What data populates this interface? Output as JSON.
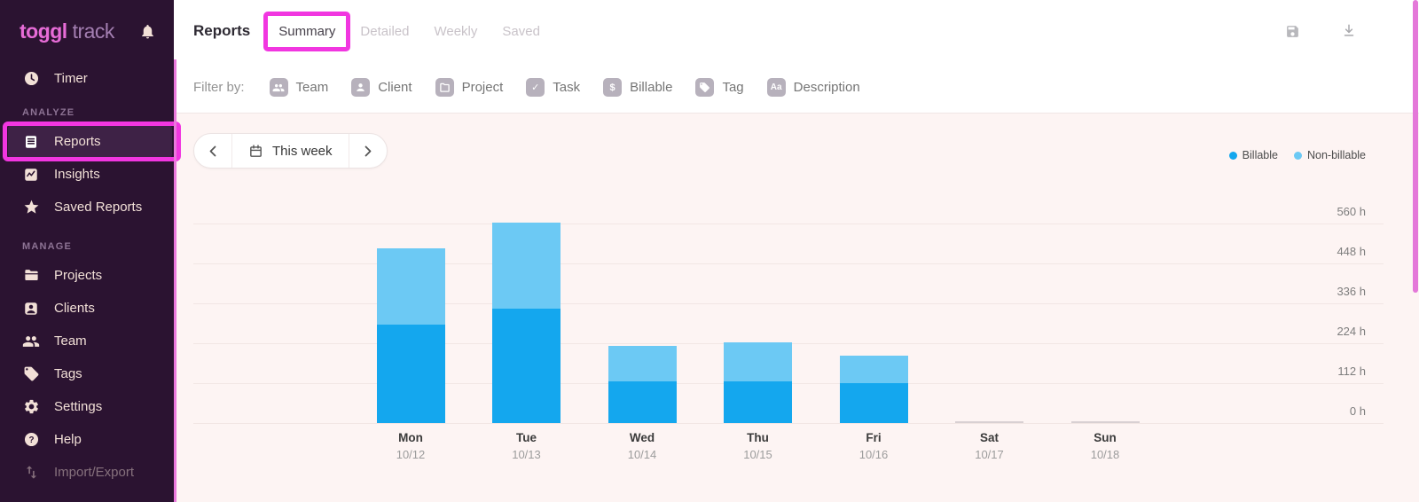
{
  "sidebar": {
    "logo_bold": "toggl",
    "logo_light": "track",
    "items_top": [
      {
        "label": "Timer",
        "icon": "clock-icon"
      }
    ],
    "sections": [
      {
        "header": "ANALYZE",
        "items": [
          {
            "label": "Reports",
            "icon": "reports-doc-icon",
            "active": true,
            "annotated": true
          },
          {
            "label": "Insights",
            "icon": "insights-chart-icon"
          },
          {
            "label": "Saved Reports",
            "icon": "star-icon"
          }
        ]
      },
      {
        "header": "MANAGE",
        "items": [
          {
            "label": "Projects",
            "icon": "folder-icon"
          },
          {
            "label": "Clients",
            "icon": "client-card-icon"
          },
          {
            "label": "Team",
            "icon": "people-icon"
          },
          {
            "label": "Tags",
            "icon": "tag-icon"
          },
          {
            "label": "Settings",
            "icon": "gear-icon"
          },
          {
            "label": "Help",
            "icon": "help-icon"
          },
          {
            "label": "Import/Export",
            "icon": "import-export-icon",
            "disabled": true
          }
        ]
      }
    ]
  },
  "topbar": {
    "title": "Reports",
    "tabs": [
      {
        "label": "Summary",
        "active": true,
        "annotated": true
      },
      {
        "label": "Detailed",
        "active": false
      },
      {
        "label": "Weekly",
        "active": false
      },
      {
        "label": "Saved",
        "active": false
      }
    ],
    "icons": [
      "save-icon",
      "download-icon"
    ]
  },
  "filterbar": {
    "label": "Filter by:",
    "filters": [
      {
        "label": "Team",
        "icon": "team-badge-icon"
      },
      {
        "label": "Client",
        "icon": "person-badge-icon"
      },
      {
        "label": "Project",
        "icon": "folder-badge-icon"
      },
      {
        "label": "Task",
        "icon": "check-badge-icon",
        "badge_text": "✓"
      },
      {
        "label": "Billable",
        "icon": "dollar-badge-icon",
        "badge_text": "$"
      },
      {
        "label": "Tag",
        "icon": "tag-badge-icon"
      },
      {
        "label": "Description",
        "icon": "text-badge-icon",
        "badge_text": "Aa"
      }
    ]
  },
  "date_nav": {
    "prev": "chevron-left-icon",
    "label": "This week",
    "next": "chevron-right-icon",
    "calendar": "calendar-icon"
  },
  "chart_data": {
    "type": "bar",
    "stacked": true,
    "title": "",
    "xlabel": "",
    "ylabel": "hours",
    "unit": "h",
    "ylim": [
      0,
      560
    ],
    "yticks": [
      0,
      112,
      224,
      336,
      448,
      560
    ],
    "grid": true,
    "legend_position": "top-right",
    "categories": [
      {
        "day": "Mon",
        "date": "10/12"
      },
      {
        "day": "Tue",
        "date": "10/13"
      },
      {
        "day": "Wed",
        "date": "10/14"
      },
      {
        "day": "Thu",
        "date": "10/15"
      },
      {
        "day": "Fri",
        "date": "10/16"
      },
      {
        "day": "Sat",
        "date": "10/17"
      },
      {
        "day": "Sun",
        "date": "10/18"
      }
    ],
    "series": [
      {
        "name": "Billable",
        "color": "#14a7ee",
        "values": [
          276,
          321,
          117,
          117,
          112,
          0,
          0
        ]
      },
      {
        "name": "Non-billable",
        "color": "#6cc9f4",
        "values": [
          214,
          241,
          100,
          110,
          77,
          0,
          0
        ]
      }
    ]
  },
  "colors": {
    "billable": "#14a7ee",
    "non_billable": "#6cc9f4",
    "annotation_pink": "#f136e0",
    "brand_pink": "#e76cd7",
    "sidebar_bg": "#2b1331"
  }
}
